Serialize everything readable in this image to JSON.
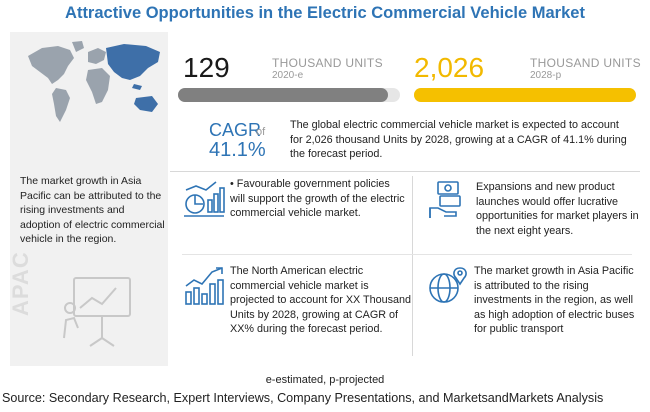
{
  "title": "Attractive Opportunities in the Electric Commercial Vehicle Market",
  "left_panel": {
    "text": "The market growth in Asia Pacific can be attributed to the rising investments and adoption of electric commercial vehicle in the region.",
    "region_label": "APAC"
  },
  "stats": [
    {
      "value": "129",
      "unit": "THOUSAND UNITS",
      "year": "2020-e",
      "bar_color": "#808080",
      "bar_fraction": 0.06
    },
    {
      "value": "2,026",
      "unit": "THOUSAND UNITS",
      "year": "2028-p",
      "bar_color": "#f5c000",
      "bar_fraction": 1.0
    }
  ],
  "cagr": {
    "label": "CAGR",
    "of": "of",
    "value": "41.1%",
    "summary": "The global electric commercial vehicle market is expected to account for 2,026 thousand Units by 2028, growing at a CAGR of 41.1% during the forecast period."
  },
  "insights": [
    {
      "text": "• Favourable government policies will support the growth of the electric commercial vehicle market.",
      "icon": "policy-chart-icon"
    },
    {
      "text": "Expansions and new product launches would offer lucrative opportunities for market players in the next eight years.",
      "icon": "money-hand-icon"
    },
    {
      "text": "The North American electric commercial vehicle market is projected to account for XX Thousand Units by 2028, growing at CAGR of XX% during the forecast period.",
      "icon": "growth-chart-icon"
    },
    {
      "text": "The market growth in Asia Pacific is attributed to the rising investments in the region, as well as high adoption of electric buses for public transport",
      "icon": "globe-pin-icon"
    }
  ],
  "footnote": "e-estimated, p-projected",
  "source": "Source: Secondary Research, Expert Interviews, Company Presentations, and MarketsandMarkets Analysis"
}
